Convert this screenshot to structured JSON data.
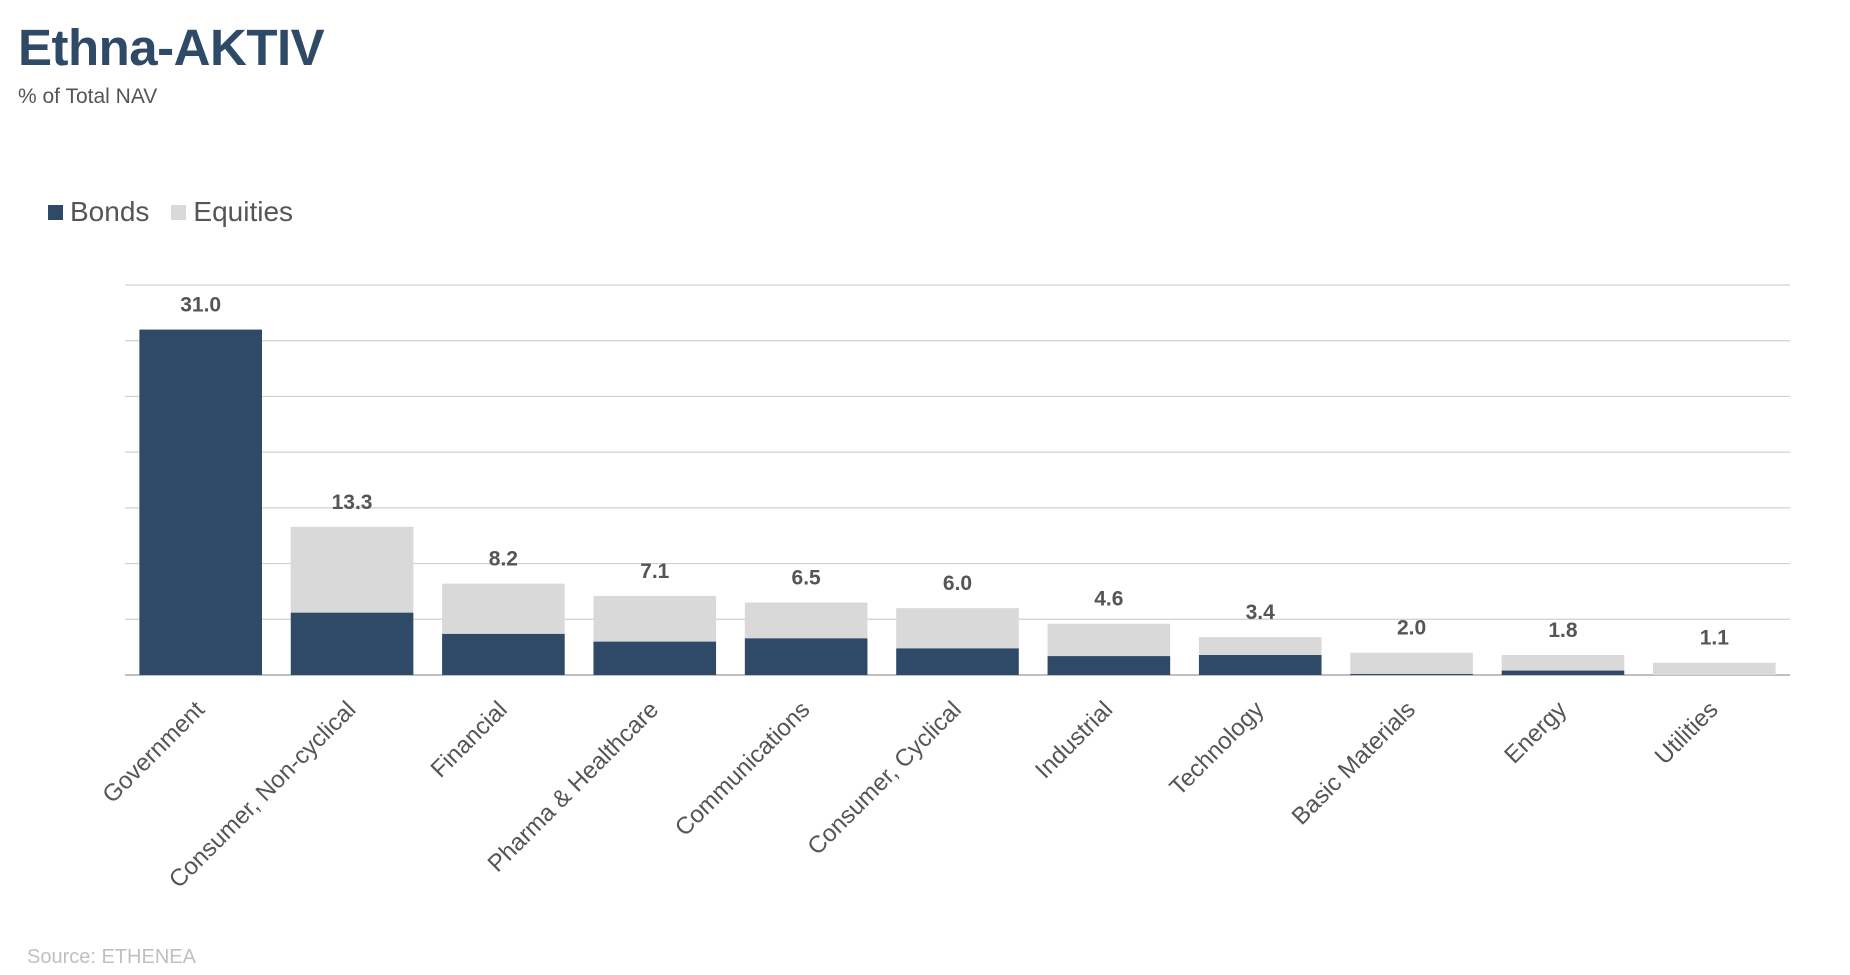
{
  "header": {
    "title": "Ethna-AKTIV",
    "subtitle": "% of Total NAV"
  },
  "footer": {
    "source": "Source: ETHENEA"
  },
  "colors": {
    "bonds": "#2e4a67",
    "equities": "#d9d9d9",
    "grid": "#d0d0d0",
    "axis": "#bfbfbf"
  },
  "chart_data": {
    "type": "bar",
    "stacked": true,
    "title": "Ethna-AKTIV",
    "subtitle": "% of Total NAV",
    "categories": [
      "Government",
      "Consumer, Non-cyclical",
      "Financial",
      "Pharma & Healthcare",
      "Communications",
      "Consumer, Cyclical",
      "Industrial",
      "Technology",
      "Basic Materials",
      "Energy",
      "Utilities"
    ],
    "series": [
      {
        "name": "Bonds",
        "values": [
          31.0,
          5.6,
          3.7,
          3.0,
          3.3,
          2.4,
          1.7,
          1.8,
          0.1,
          0.4,
          0.0
        ]
      },
      {
        "name": "Equities",
        "values": [
          0.0,
          7.7,
          4.5,
          4.1,
          3.2,
          3.6,
          2.9,
          1.6,
          1.9,
          1.4,
          1.1
        ]
      }
    ],
    "totals": [
      "31.0",
      "13.3",
      "8.2",
      "7.1",
      "6.5",
      "6.0",
      "4.6",
      "3.4",
      "2.0",
      "1.8",
      "1.1"
    ],
    "ylim": [
      0,
      35
    ],
    "y_gridline_step": 5,
    "y_tick_labels_shown": false,
    "grid": true,
    "legend": "top-left",
    "xlabel": "",
    "ylabel": ""
  }
}
